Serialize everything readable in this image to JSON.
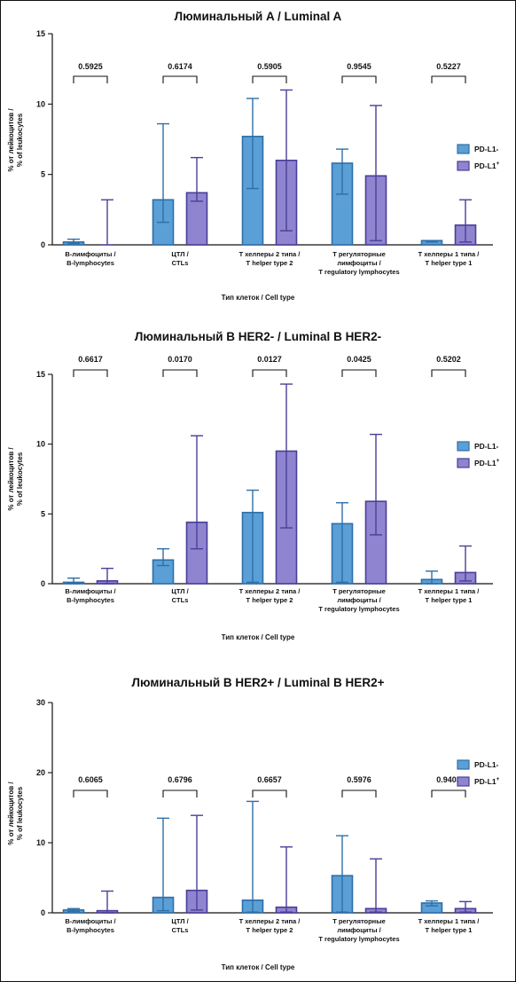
{
  "colors": {
    "pdl1_neg_fill": "#5a9fd6",
    "pdl1_neg_stroke": "#2f6fa8",
    "pdl1_pos_fill": "#8f84cf",
    "pdl1_pos_stroke": "#4a3f98",
    "axis": "#111111"
  },
  "legend": {
    "neg_label": "PD-L1-",
    "pos_label": "PD-L1",
    "pos_sup": "+"
  },
  "categories": [
    [
      "B-лимфоциты /",
      "B-lymphocytes"
    ],
    [
      "ЦТЛ /",
      "CTLs"
    ],
    [
      "T хелперы 2 типа /",
      "T helper type 2"
    ],
    [
      "T регуляторные",
      "лимфоциты /",
      "T regulatory lymphocytes"
    ],
    [
      "T хелперы 1 типа /",
      "T helper type 1"
    ]
  ],
  "chart_data": [
    {
      "type": "bar",
      "title": "Люминальный A / Luminal A",
      "ylabel": [
        "% от лейкоцитов /",
        "% of leukocytes"
      ],
      "xlabel": "Тип клеток / Cell type",
      "ylim": [
        0,
        15
      ],
      "yticks": [
        "0",
        "5",
        "10",
        "15"
      ],
      "p_values": [
        "0.5925",
        "0.6174",
        "0.5905",
        "0.9545",
        "0.5227"
      ],
      "series": [
        {
          "name": "PD-L1-",
          "values": [
            0.2,
            3.2,
            7.7,
            5.8,
            0.3
          ],
          "err_low": [
            0.1,
            1.6,
            4.0,
            3.6,
            0.2
          ],
          "err_high": [
            0.4,
            8.6,
            10.4,
            6.8,
            0.3
          ]
        },
        {
          "name": "PD-L1+",
          "values": [
            0.0,
            3.7,
            6.0,
            4.9,
            1.4
          ],
          "err_low": [
            0.0,
            3.1,
            1.0,
            0.3,
            0.2
          ],
          "err_high": [
            3.2,
            6.2,
            11.0,
            9.9,
            3.2
          ]
        }
      ]
    },
    {
      "type": "bar",
      "title": "Люминальный B HER2- / Luminal B HER2-",
      "ylabel": [
        "% от лейкоцитов /",
        "% of leukocytes"
      ],
      "xlabel": "Тип клеток / Cell type",
      "ylim": [
        0,
        15
      ],
      "yticks": [
        "0",
        "5",
        "10",
        "15"
      ],
      "p_values": [
        "0.6617",
        "0.0170",
        "0.0127",
        "0.0425",
        "0.5202"
      ],
      "series": [
        {
          "name": "PD-L1-",
          "values": [
            0.1,
            1.7,
            5.1,
            4.3,
            0.3
          ],
          "err_low": [
            0.0,
            1.3,
            0.1,
            0.1,
            0.0
          ],
          "err_high": [
            0.4,
            2.5,
            6.7,
            5.8,
            0.9
          ]
        },
        {
          "name": "PD-L1+",
          "values": [
            0.2,
            4.4,
            9.5,
            5.9,
            0.8
          ],
          "err_low": [
            0.0,
            2.5,
            4.0,
            3.5,
            0.2
          ],
          "err_high": [
            1.1,
            10.6,
            14.3,
            10.7,
            2.7
          ]
        }
      ]
    },
    {
      "type": "bar",
      "title": "Люминальный B HER2+ / Luminal B HER2+",
      "ylabel": [
        "% от лейкоцитов /",
        "% of leukocytes"
      ],
      "xlabel": "Тип клеток / Cell type",
      "ylim": [
        0,
        30
      ],
      "yticks": [
        "0",
        "10",
        "20",
        "30"
      ],
      "p_values": [
        "0.6065",
        "0.6796",
        "0.6657",
        "0.5976",
        "0.9403"
      ],
      "series": [
        {
          "name": "PD-L1-",
          "values": [
            0.4,
            2.2,
            1.8,
            5.3,
            1.4
          ],
          "err_low": [
            0.2,
            0.3,
            0.1,
            0.1,
            1.0
          ],
          "err_high": [
            0.6,
            13.5,
            15.9,
            11.0,
            1.7
          ]
        },
        {
          "name": "PD-L1+",
          "values": [
            0.3,
            3.2,
            0.8,
            0.6,
            0.6
          ],
          "err_low": [
            0.0,
            0.4,
            0.1,
            0.1,
            0.1
          ],
          "err_high": [
            3.1,
            13.9,
            9.4,
            7.7,
            1.6
          ]
        }
      ]
    }
  ]
}
